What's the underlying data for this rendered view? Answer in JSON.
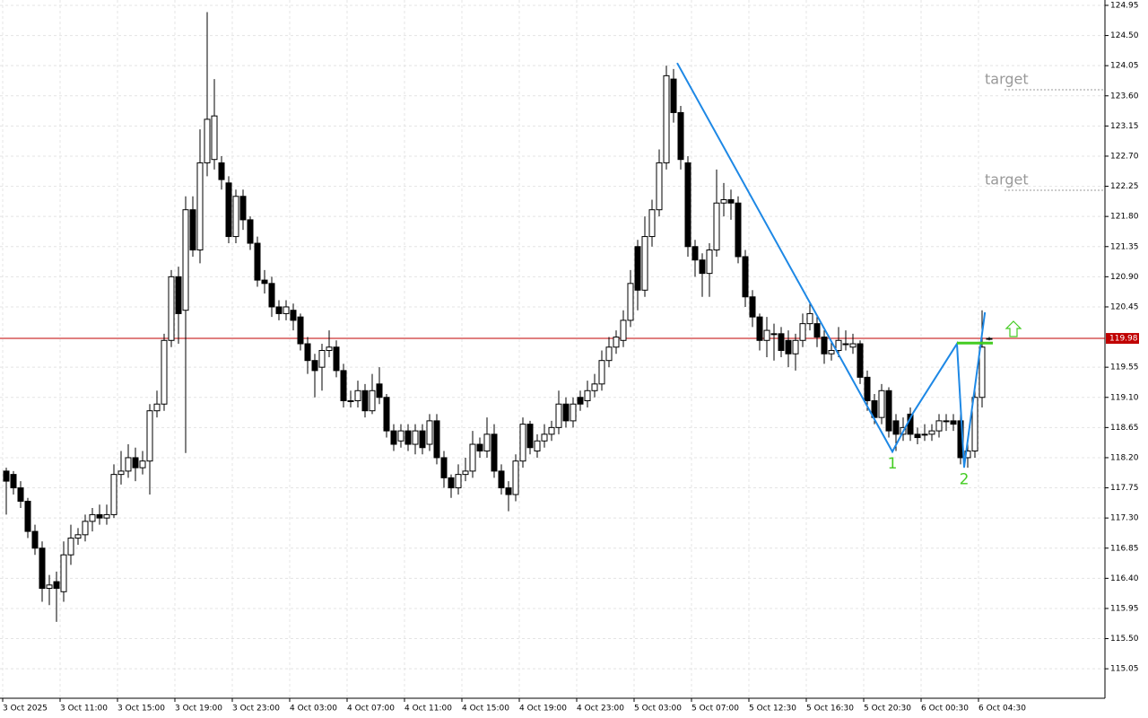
{
  "chart_data": {
    "type": "candlestick",
    "ylim": [
      114.61,
      125.03
    ],
    "yticks": [
      124.95,
      {
        "value": 124.5,
        "label": "124.50"
      },
      124.05,
      {
        "value": 123.6,
        "label": "123.60"
      },
      123.15,
      {
        "value": 122.7,
        "label": "122.70"
      },
      122.25,
      {
        "value": 121.8,
        "label": "121.80"
      },
      121.35,
      {
        "value": 120.9,
        "label": "120.90"
      },
      120.45,
      119.55,
      {
        "value": 119.1,
        "label": "119.10"
      },
      118.65,
      {
        "value": 118.2,
        "label": "118.20"
      },
      117.75,
      {
        "value": 117.3,
        "label": "117.30"
      },
      116.85,
      {
        "value": 116.4,
        "label": "116.40"
      },
      115.95,
      {
        "value": 115.5,
        "label": "115.50"
      },
      115.05
    ],
    "xticks": [
      {
        "value": 0,
        "label": "3 Oct 2025"
      },
      {
        "value": 8,
        "label": "3 Oct 11:00"
      },
      {
        "value": 16,
        "label": "3 Oct 15:00"
      },
      {
        "value": 24,
        "label": "3 Oct 19:00"
      },
      {
        "value": 32,
        "label": "3 Oct 23:00"
      },
      {
        "value": 40,
        "label": "4 Oct 03:00"
      },
      {
        "value": 48,
        "label": "4 Oct 07:00"
      },
      {
        "value": 56,
        "label": "4 Oct 11:00"
      },
      {
        "value": 64,
        "label": "4 Oct 15:00"
      },
      {
        "value": 72,
        "label": "4 Oct 19:00"
      },
      {
        "value": 80,
        "label": "4 Oct 23:00"
      },
      {
        "value": 88,
        "label": "5 Oct 03:00"
      },
      {
        "value": 96,
        "label": "5 Oct 07:00"
      },
      {
        "value": 104,
        "label": "5 Oct 12:30"
      },
      {
        "value": 112,
        "label": "5 Oct 16:30"
      },
      {
        "value": 120,
        "label": "5 Oct 20:30"
      },
      {
        "value": 128,
        "label": "6 Oct 00:30"
      },
      {
        "value": 136,
        "label": "6 Oct 04:30"
      }
    ],
    "grid": true,
    "open": [
      118.0,
      117.95,
      117.75,
      117.55,
      117.1,
      116.85,
      116.25,
      116.35,
      116.2,
      116.75,
      117.0,
      117.05,
      117.25,
      117.35,
      117.3,
      117.35,
      117.95,
      118.0,
      118.2,
      118.05,
      118.15,
      118.9,
      119.0,
      119.95,
      120.9,
      120.4,
      121.9,
      121.3,
      122.6,
      122.65,
      122.6,
      122.3,
      121.5,
      122.1,
      121.75,
      121.4,
      120.85,
      120.8,
      120.45,
      120.35,
      120.4,
      120.3,
      119.9,
      119.65,
      119.55,
      119.8,
      119.85,
      119.5,
      119.05,
      119.05,
      119.2,
      118.9,
      119.3,
      119.1,
      118.6,
      118.45,
      118.6,
      118.4,
      118.6,
      118.4,
      118.75,
      118.2,
      117.9,
      117.75,
      117.95,
      118.0,
      118.4,
      118.3,
      118.55,
      118.0,
      117.75,
      117.65,
      118.15,
      118.7,
      118.3,
      118.45,
      118.55,
      118.65,
      119.0,
      118.75,
      119.1,
      119.05,
      119.2,
      119.3,
      119.65,
      119.85,
      119.95,
      120.25,
      121.35,
      120.7,
      121.5,
      121.9,
      122.6,
      123.85,
      123.35,
      122.6,
      121.35,
      121.15,
      120.95,
      121.3,
      122.0,
      122.05,
      122.0,
      121.2,
      120.6,
      120.3,
      119.95,
      120.05,
      120.05,
      119.95,
      119.75,
      119.95,
      120.2,
      120.2,
      120.0,
      119.75,
      119.8,
      119.9,
      119.85,
      119.9,
      119.4,
      119.05,
      118.8,
      119.2,
      118.75,
      118.55,
      118.85,
      118.55,
      118.55,
      118.55,
      118.6,
      118.75,
      118.75,
      118.75,
      118.2,
      118.3,
      119.1,
      119.98
    ],
    "high": [
      118.05,
      118.0,
      117.85,
      117.6,
      117.2,
      116.95,
      116.45,
      116.5,
      116.95,
      117.2,
      117.15,
      117.35,
      117.45,
      117.5,
      117.5,
      118.1,
      118.3,
      118.4,
      118.35,
      118.3,
      119.0,
      119.2,
      120.05,
      121.0,
      121.05,
      122.1,
      122.1,
      123.1,
      124.85,
      123.85,
      122.7,
      122.4,
      122.2,
      122.2,
      121.8,
      121.5,
      121.0,
      120.9,
      120.55,
      120.55,
      120.5,
      120.35,
      120.0,
      119.75,
      119.9,
      120.1,
      119.95,
      119.6,
      119.2,
      119.35,
      119.3,
      119.45,
      119.55,
      119.15,
      118.7,
      118.7,
      118.7,
      118.7,
      118.7,
      118.85,
      118.85,
      118.3,
      117.95,
      118.1,
      118.2,
      118.6,
      118.5,
      118.8,
      118.7,
      118.1,
      117.85,
      118.25,
      118.8,
      118.75,
      118.55,
      118.7,
      118.75,
      119.2,
      119.1,
      119.1,
      119.2,
      119.35,
      119.45,
      119.8,
      120.0,
      120.1,
      120.4,
      121.0,
      121.45,
      121.8,
      122.05,
      122.8,
      124.05,
      124.0,
      123.45,
      122.7,
      121.45,
      121.25,
      121.4,
      122.5,
      122.3,
      122.2,
      122.1,
      121.3,
      120.7,
      120.35,
      120.3,
      120.2,
      120.15,
      120.1,
      120.05,
      120.35,
      120.5,
      120.3,
      120.1,
      119.95,
      120.15,
      120.1,
      120.05,
      119.95,
      119.5,
      119.15,
      119.3,
      119.25,
      118.85,
      118.8,
      118.95,
      118.65,
      118.7,
      118.7,
      118.85,
      118.85,
      118.85,
      118.85,
      118.45,
      119.25,
      120.4,
      120.0
    ],
    "low": [
      117.35,
      117.65,
      117.45,
      117.0,
      116.75,
      116.05,
      116.0,
      115.75,
      116.05,
      116.6,
      116.9,
      116.95,
      117.1,
      117.2,
      117.2,
      117.3,
      117.8,
      117.9,
      117.85,
      117.95,
      117.65,
      118.8,
      118.9,
      119.85,
      119.9,
      118.27,
      121.2,
      121.1,
      122.4,
      122.5,
      122.2,
      121.4,
      121.4,
      121.6,
      121.3,
      120.75,
      120.65,
      120.3,
      120.25,
      120.25,
      120.1,
      119.8,
      119.45,
      119.1,
      119.2,
      119.7,
      119.4,
      118.95,
      118.95,
      118.95,
      118.8,
      118.85,
      119.0,
      118.5,
      118.3,
      118.35,
      118.3,
      118.25,
      118.25,
      118.3,
      118.1,
      117.75,
      117.6,
      117.65,
      117.85,
      117.9,
      118.2,
      118.2,
      117.9,
      117.65,
      117.4,
      117.55,
      118.05,
      118.25,
      118.2,
      118.35,
      118.45,
      118.55,
      118.65,
      118.65,
      118.9,
      118.95,
      119.1,
      119.2,
      119.55,
      119.75,
      119.85,
      120.15,
      120.4,
      120.6,
      121.35,
      121.8,
      122.5,
      123.2,
      122.5,
      121.2,
      120.9,
      120.6,
      120.6,
      121.2,
      121.8,
      121.75,
      121.1,
      120.45,
      120.15,
      119.8,
      119.7,
      119.65,
      119.7,
      119.55,
      119.5,
      119.85,
      120.1,
      119.85,
      119.6,
      119.65,
      119.7,
      119.8,
      119.75,
      119.3,
      118.9,
      118.7,
      118.7,
      118.5,
      118.3,
      118.45,
      118.45,
      118.4,
      118.45,
      118.45,
      118.5,
      118.6,
      118.6,
      118.1,
      118.05,
      118.2,
      118.95,
      119.95
    ],
    "close": [
      117.85,
      117.75,
      117.55,
      117.1,
      116.85,
      116.25,
      116.3,
      116.25,
      116.75,
      117.0,
      117.05,
      117.25,
      117.35,
      117.3,
      117.35,
      117.95,
      118.0,
      118.2,
      118.05,
      118.15,
      118.9,
      119.0,
      119.95,
      120.9,
      120.35,
      121.9,
      121.3,
      122.6,
      123.25,
      123.3,
      122.35,
      121.5,
      122.1,
      121.75,
      121.4,
      120.85,
      120.8,
      120.45,
      120.35,
      120.45,
      120.25,
      119.9,
      119.65,
      119.5,
      119.8,
      119.85,
      119.5,
      119.05,
      119.05,
      119.2,
      118.9,
      119.2,
      119.1,
      118.6,
      118.4,
      118.6,
      118.4,
      118.6,
      118.35,
      118.75,
      118.2,
      117.9,
      117.75,
      117.95,
      118.0,
      118.4,
      118.3,
      118.55,
      118.0,
      117.75,
      117.65,
      118.15,
      118.7,
      118.35,
      118.45,
      118.55,
      118.65,
      119.0,
      118.75,
      119.0,
      119.0,
      119.2,
      119.3,
      119.65,
      119.85,
      120.0,
      120.25,
      120.8,
      120.7,
      121.5,
      121.9,
      122.6,
      123.9,
      123.35,
      122.65,
      121.35,
      121.15,
      120.95,
      121.3,
      122.0,
      122.05,
      122.0,
      121.2,
      120.6,
      120.3,
      119.95,
      120.1,
      120.05,
      119.8,
      119.75,
      119.95,
      120.2,
      120.35,
      120.0,
      119.75,
      119.8,
      119.95,
      119.9,
      119.9,
      119.4,
      119.05,
      118.8,
      119.2,
      118.6,
      118.55,
      118.65,
      118.55,
      118.5,
      118.55,
      118.6,
      118.75,
      118.75,
      118.7,
      118.2,
      118.3,
      119.1,
      119.85,
      119.98
    ],
    "last_price": 119.98,
    "last_price_color": "#c00000",
    "targets": [
      {
        "label": "target",
        "value": 123.69
      },
      {
        "label": "target",
        "value": 122.19
      }
    ],
    "pattern_line": {
      "color": "#1e88e5",
      "x": [
        93.5,
        123.5,
        126.4,
        132.5,
        133.5,
        136.4
      ],
      "y": [
        124.09,
        118.29,
        118.87,
        119.9,
        118.06,
        120.37
      ]
    },
    "points": [
      {
        "label": "1",
        "x": 123.5,
        "y": 118.29
      },
      {
        "label": "2",
        "x": 133.5,
        "y": 118.06
      }
    ],
    "breakout": {
      "color": "#44cc22",
      "value": 119.91,
      "x": [
        132.5,
        137.5
      ]
    }
  }
}
